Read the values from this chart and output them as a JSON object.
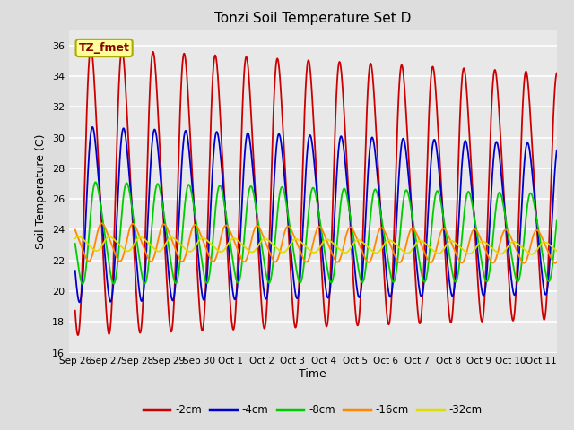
{
  "title": "Tonzi Soil Temperature Set D",
  "xlabel": "Time",
  "ylabel": "Soil Temperature (C)",
  "ylim": [
    16,
    37
  ],
  "yticks": [
    16,
    18,
    20,
    22,
    24,
    26,
    28,
    30,
    32,
    34,
    36
  ],
  "legend_labels": [
    "-2cm",
    "-4cm",
    "-8cm",
    "-16cm",
    "-32cm"
  ],
  "legend_colors": [
    "#cc0000",
    "#0000cc",
    "#00cc00",
    "#ff8800",
    "#dddd00"
  ],
  "annotation_text": "TZ_fmet",
  "annotation_color": "#880000",
  "annotation_bg": "#ffff99",
  "annotation_edge": "#aaaa00",
  "fig_bg_color": "#dddddd",
  "plot_bg_color": "#e8e8e8",
  "x_tick_positions": [
    0,
    1,
    2,
    3,
    4,
    5,
    6,
    7,
    8,
    9,
    10,
    11,
    12,
    13,
    14,
    15
  ],
  "x_tick_labels": [
    "Sep 26",
    "Sep 27",
    "Sep 28",
    "Sep 29",
    "Sep 30",
    "Oct 1",
    "Oct 2",
    "Oct 3",
    "Oct 4",
    "Oct 5",
    "Oct 6",
    "Oct 7",
    "Oct 8",
    "Oct 9",
    "Oct 10",
    "Oct 11"
  ],
  "series": [
    {
      "label": "-2cm",
      "color": "#cc0000",
      "mean": 26.5,
      "amp": 9.0,
      "phase": 0.3,
      "amp2": 0.0,
      "phase2": 0.0
    },
    {
      "label": "-4cm",
      "color": "#0000cc",
      "mean": 25.0,
      "amp": 5.5,
      "phase": 0.35,
      "amp2": 0.0,
      "phase2": 0.0
    },
    {
      "label": "-8cm",
      "color": "#00cc00",
      "mean": 23.8,
      "amp": 3.2,
      "phase": 0.45,
      "amp2": 0.0,
      "phase2": 0.0
    },
    {
      "label": "-16cm",
      "color": "#ff8800",
      "mean": 23.2,
      "amp": 1.2,
      "phase": 0.65,
      "amp2": 0.0,
      "phase2": 0.0
    },
    {
      "label": "-32cm",
      "color": "#dddd00",
      "mean": 23.1,
      "amp": 0.45,
      "phase": 0.9,
      "amp2": 0.0,
      "phase2": 0.0
    }
  ]
}
